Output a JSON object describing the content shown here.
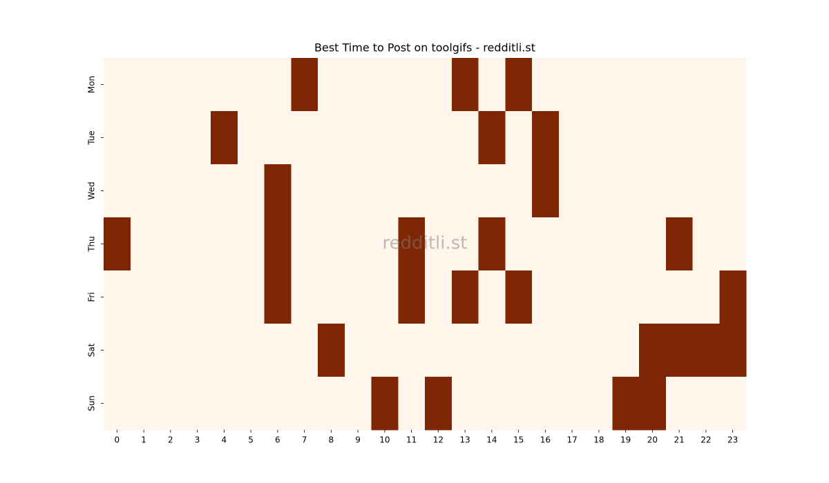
{
  "chart_data": {
    "type": "heatmap",
    "title": "Best Time to Post on toolgifs - redditli.st",
    "watermark": "redditli.st",
    "columns": [
      0,
      1,
      2,
      3,
      4,
      5,
      6,
      7,
      8,
      9,
      10,
      11,
      12,
      13,
      14,
      15,
      16,
      17,
      18,
      19,
      20,
      21,
      22,
      23
    ],
    "rows": [
      "Mon",
      "Tue",
      "Wed",
      "Thu",
      "Fri",
      "Sat",
      "Sun"
    ],
    "values": [
      [
        0,
        0,
        0,
        0,
        0,
        0,
        0,
        1,
        0,
        0,
        0,
        0,
        0,
        1,
        0,
        1,
        0,
        0,
        0,
        0,
        0,
        0,
        0,
        0
      ],
      [
        0,
        0,
        0,
        0,
        1,
        0,
        0,
        0,
        0,
        0,
        0,
        0,
        0,
        0,
        1,
        0,
        1,
        0,
        0,
        0,
        0,
        0,
        0,
        0
      ],
      [
        0,
        0,
        0,
        0,
        0,
        0,
        1,
        0,
        0,
        0,
        0,
        0,
        0,
        0,
        0,
        0,
        1,
        0,
        0,
        0,
        0,
        0,
        0,
        0
      ],
      [
        1,
        0,
        0,
        0,
        0,
        0,
        1,
        0,
        0,
        0,
        0,
        1,
        0,
        0,
        1,
        0,
        0,
        0,
        0,
        0,
        0,
        1,
        0,
        0
      ],
      [
        0,
        0,
        0,
        0,
        0,
        0,
        1,
        0,
        0,
        0,
        0,
        1,
        0,
        1,
        0,
        1,
        0,
        0,
        0,
        0,
        0,
        0,
        0,
        1
      ],
      [
        0,
        0,
        0,
        0,
        0,
        0,
        0,
        0,
        1,
        0,
        0,
        0,
        0,
        0,
        0,
        0,
        0,
        0,
        0,
        0,
        1,
        1,
        1,
        1
      ],
      [
        0,
        0,
        0,
        0,
        0,
        0,
        0,
        0,
        0,
        0,
        1,
        0,
        1,
        0,
        0,
        0,
        0,
        0,
        0,
        1,
        1,
        0,
        0,
        0
      ]
    ],
    "colormap": [
      "#fff5eb",
      "#7f2704"
    ]
  }
}
